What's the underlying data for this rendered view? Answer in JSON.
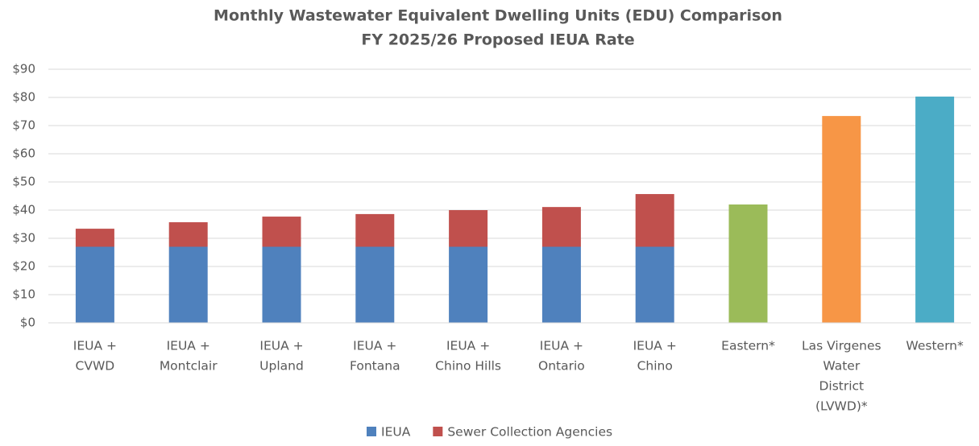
{
  "chart_data": {
    "type": "stacked_bar",
    "title": "Monthly Wastewater Equivalent Dwelling Units (EDU) Comparison",
    "subtitle": "FY 2025/26 Proposed IEUA Rate",
    "categories": [
      [
        "IEUA +",
        "CVWD"
      ],
      [
        "IEUA +",
        "Montclair"
      ],
      [
        "IEUA +",
        "Upland"
      ],
      [
        "IEUA +",
        "Fontana"
      ],
      [
        "IEUA +",
        "Chino Hills"
      ],
      [
        "IEUA +",
        "Ontario"
      ],
      [
        "IEUA +",
        "Chino"
      ],
      [
        "Eastern*"
      ],
      [
        "Las Virgenes",
        "Water",
        "District",
        "(LVWD)*"
      ],
      [
        "Western*"
      ]
    ],
    "series": [
      {
        "name": "IEUA",
        "color": "#4f81bd",
        "values": [
          27,
          27,
          27,
          27,
          27,
          27,
          27,
          null,
          null,
          null
        ]
      },
      {
        "name": "Sewer Collection Agencies",
        "color": "#c0504d",
        "values": [
          6.4,
          8.7,
          10.7,
          11.6,
          13,
          14.1,
          18.7,
          null,
          null,
          null
        ]
      },
      {
        "colors": [
          null,
          null,
          null,
          null,
          null,
          null,
          null,
          "#9bbb59",
          "#f79646",
          "#4bacc6"
        ],
        "values": [
          null,
          null,
          null,
          null,
          null,
          null,
          null,
          42,
          73.4,
          80.3
        ]
      }
    ],
    "ylim": [
      0,
      90
    ],
    "yticks": [
      {
        "value": 0,
        "label": "$0"
      },
      {
        "value": 10,
        "label": "$10"
      },
      {
        "value": 20,
        "label": "$20"
      },
      {
        "value": 30,
        "label": "$30"
      },
      {
        "value": 40,
        "label": "$40"
      },
      {
        "value": 50,
        "label": "$50"
      },
      {
        "value": 60,
        "label": "$60"
      },
      {
        "value": 70,
        "label": "$70"
      },
      {
        "value": 80,
        "label": "$80"
      },
      {
        "value": 90,
        "label": "$90"
      }
    ],
    "grid": true,
    "legend": "bottom"
  }
}
